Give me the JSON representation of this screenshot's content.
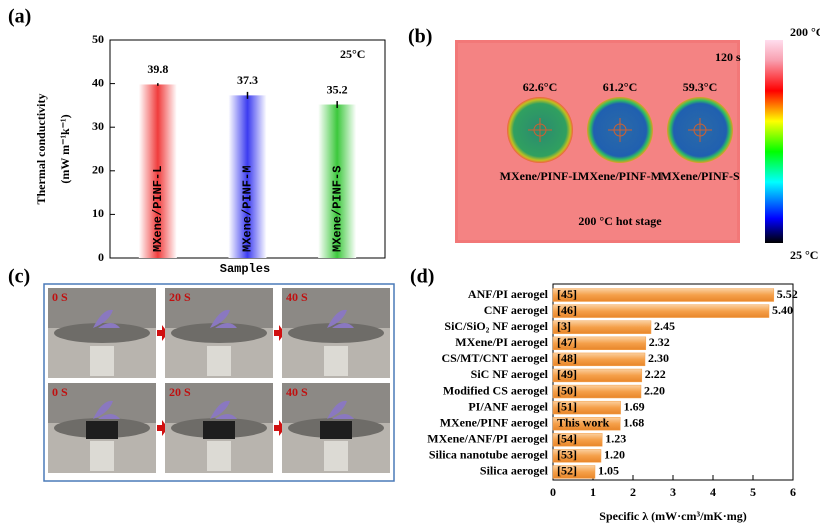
{
  "chart_data": [
    {
      "type": "bar",
      "panel_label": "(a)",
      "ylabel": [
        "Thermal conductivity",
        "(mW m⁻¹k⁻¹)"
      ],
      "xlabel": "Samples",
      "annotation": "25°C",
      "categories": [
        "MXene/PINF-L",
        "MXene/PINF-M",
        "MXene/PINF-S"
      ],
      "values": [
        39.8,
        37.3,
        35.2
      ],
      "errors": [
        0.3,
        0.8,
        0.8
      ],
      "colors": [
        "#f03c3c",
        "#3c3cf0",
        "#3cc83c"
      ],
      "ylim": [
        0,
        50
      ],
      "yticks": [
        0,
        10,
        20,
        30,
        40,
        50
      ]
    },
    {
      "type": "hbar",
      "panel_label": "(d)",
      "xlabel": "Specific λ (mW·cm³/mK·mg)",
      "categories": [
        "ANF/PI aerogel",
        "CNF aerogel",
        "SiC/SiO₂ NF aerogel",
        "MXene/PI aerogel",
        "CS/MT/CNT aerogel",
        "SiC NF aerogel",
        "Modified CS aerogel",
        "PI/ANF aerogel",
        "MXene/PINF aerogel",
        "MXene/ANF/PI aerogel",
        "Silica nanotube aerogel",
        "Silica aerogel"
      ],
      "refs": [
        "[45]",
        "[46]",
        "[3]",
        "[47]",
        "[48]",
        "[49]",
        "[50]",
        "[51]",
        "This work",
        "[54]",
        "[53]",
        "[52]"
      ],
      "values": [
        5.52,
        5.4,
        2.45,
        2.32,
        2.3,
        2.22,
        2.2,
        1.69,
        1.68,
        1.23,
        1.2,
        1.05
      ],
      "value_labels": [
        "5.52",
        "5.40",
        "2.45",
        "2.32",
        "2.30",
        "2.22",
        "2.20",
        "1.69",
        "1.68",
        "1.23",
        "1.20",
        "1.05"
      ],
      "color": "#f5a04a",
      "xlim": [
        0,
        6
      ],
      "xticks": [
        0,
        1,
        2,
        3,
        4,
        5,
        6
      ]
    }
  ],
  "thermal_image": {
    "panel_label": "(b)",
    "time": "120 s",
    "temperatures": [
      "62.6°C",
      "61.2°C",
      "59.3°C"
    ],
    "samples": [
      "MXene/PINF-L",
      "MXene/PINF-M",
      "MXene/PINF-S"
    ],
    "caption": "200 °C hot stage",
    "colorbar_max": "200 °C",
    "colorbar_min": "25 °C"
  },
  "photos": {
    "panel_label": "(c)",
    "row1": [
      "0 S",
      "20 S",
      "40 S"
    ],
    "row2": [
      "0 S",
      "20 S",
      "40 S"
    ]
  }
}
